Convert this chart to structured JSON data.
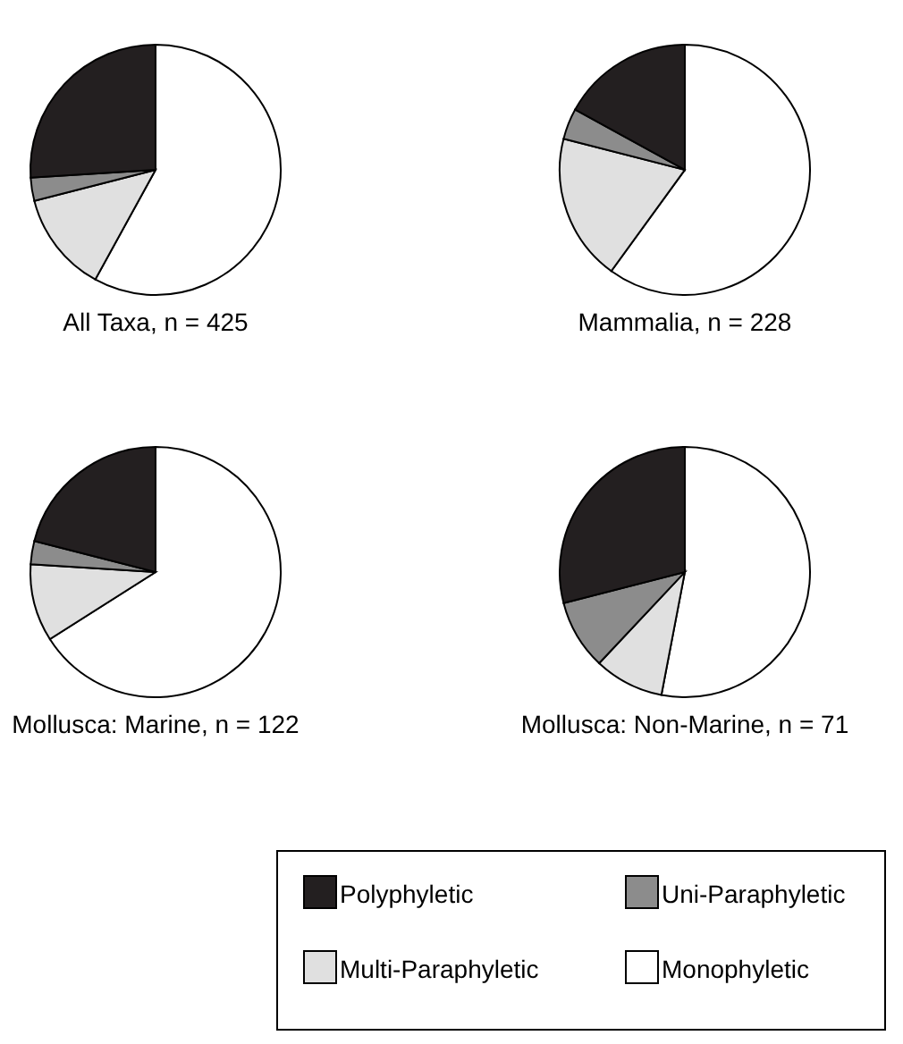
{
  "chart_data": [
    {
      "type": "pie",
      "title": "All Taxa, n = 425",
      "categories": [
        "Monophyletic",
        "Multi-Paraphyletic",
        "Uni-Paraphyletic",
        "Polyphyletic"
      ],
      "values": [
        58,
        13,
        3,
        26
      ],
      "colors": [
        "#ffffff",
        "#e0e0e0",
        "#8c8c8c",
        "#231f20"
      ],
      "legend": "bottom"
    },
    {
      "type": "pie",
      "title": "Mammalia, n = 228",
      "values": [
        60,
        19,
        4,
        17
      ],
      "colors": [
        "#ffffff",
        "#e0e0e0",
        "#8c8c8c",
        "#231f20"
      ]
    },
    {
      "type": "pie",
      "title": "Mollusca: Marine, n = 122",
      "values": [
        66,
        10,
        3,
        21
      ],
      "colors": [
        "#ffffff",
        "#e0e0e0",
        "#8c8c8c",
        "#231f20"
      ]
    },
    {
      "type": "pie",
      "title": "Mollusca: Non-Marine, n = 71",
      "values": [
        53,
        9,
        9,
        29
      ],
      "colors": [
        "#ffffff",
        "#e0e0e0",
        "#8c8c8c",
        "#231f20"
      ]
    }
  ]
}
